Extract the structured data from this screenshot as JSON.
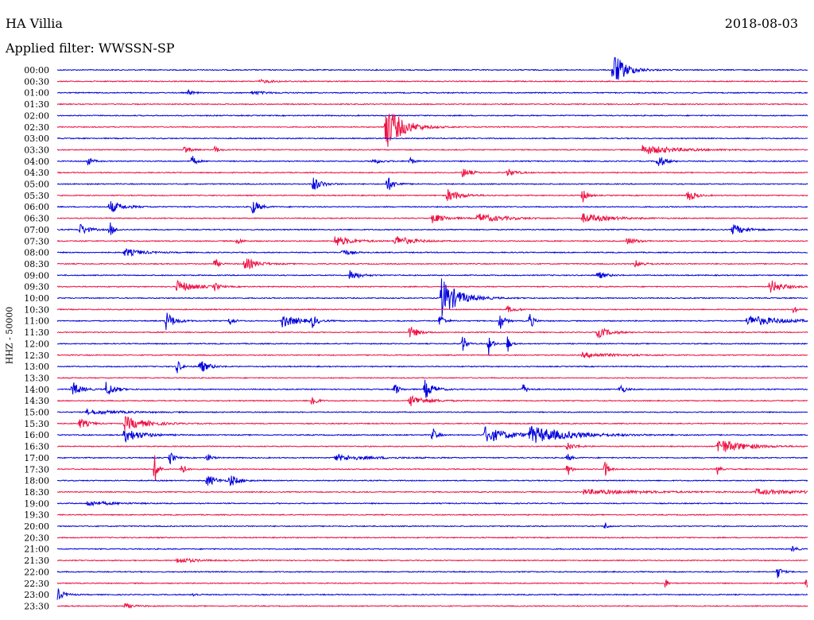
{
  "header": {
    "station": "HA Villia",
    "date": "2018-08-03",
    "filter": "Applied filter: WWSSN-SP"
  },
  "chart_data": {
    "type": "line",
    "title": "HA Villia",
    "subtitle": "Applied filter: WWSSN-SP",
    "ylabel": "HHZ - 50000",
    "colors": [
      "#0000dd",
      "#ee1144"
    ],
    "rows": [
      {
        "label": "00:00",
        "color": "blue",
        "events": [
          {
            "t": 0.741,
            "amp": 22,
            "dur": 0.015
          }
        ]
      },
      {
        "label": "00:30",
        "color": "red",
        "events": [
          {
            "t": 0.27,
            "amp": 2,
            "dur": 0.02
          }
        ]
      },
      {
        "label": "01:00",
        "color": "blue",
        "events": [
          {
            "t": 0.175,
            "amp": 4,
            "dur": 0.005
          },
          {
            "t": 0.26,
            "amp": 2,
            "dur": 0.02
          }
        ]
      },
      {
        "label": "01:30",
        "color": "red",
        "events": []
      },
      {
        "label": "02:00",
        "color": "blue",
        "events": []
      },
      {
        "label": "02:30",
        "color": "red",
        "events": [
          {
            "t": 0.437,
            "amp": 30,
            "dur": 0.02
          }
        ]
      },
      {
        "label": "03:00",
        "color": "blue",
        "events": []
      },
      {
        "label": "03:30",
        "color": "red",
        "events": [
          {
            "t": 0.17,
            "amp": 6,
            "dur": 0.006
          },
          {
            "t": 0.21,
            "amp": 5,
            "dur": 0.005
          },
          {
            "t": 0.78,
            "amp": 6,
            "dur": 0.04
          }
        ]
      },
      {
        "label": "04:00",
        "color": "blue",
        "events": [
          {
            "t": 0.04,
            "amp": 6,
            "dur": 0.006
          },
          {
            "t": 0.18,
            "amp": 7,
            "dur": 0.005
          },
          {
            "t": 0.42,
            "amp": 4,
            "dur": 0.01
          },
          {
            "t": 0.47,
            "amp": 5,
            "dur": 0.005
          },
          {
            "t": 0.8,
            "amp": 10,
            "dur": 0.008
          }
        ]
      },
      {
        "label": "04:30",
        "color": "red",
        "events": [
          {
            "t": 0.54,
            "amp": 6,
            "dur": 0.01
          },
          {
            "t": 0.6,
            "amp": 5,
            "dur": 0.01
          }
        ]
      },
      {
        "label": "05:00",
        "color": "blue",
        "events": [
          {
            "t": 0.34,
            "amp": 10,
            "dur": 0.01
          },
          {
            "t": 0.44,
            "amp": 10,
            "dur": 0.008
          }
        ]
      },
      {
        "label": "05:30",
        "color": "red",
        "events": [
          {
            "t": 0.52,
            "amp": 8,
            "dur": 0.015
          },
          {
            "t": 0.7,
            "amp": 10,
            "dur": 0.005
          },
          {
            "t": 0.84,
            "amp": 9,
            "dur": 0.008
          }
        ]
      },
      {
        "label": "06:00",
        "color": "blue",
        "events": [
          {
            "t": 0.07,
            "amp": 8,
            "dur": 0.015
          },
          {
            "t": 0.26,
            "amp": 10,
            "dur": 0.008
          }
        ]
      },
      {
        "label": "06:30",
        "color": "red",
        "events": [
          {
            "t": 0.5,
            "amp": 6,
            "dur": 0.015
          },
          {
            "t": 0.56,
            "amp": 6,
            "dur": 0.03
          },
          {
            "t": 0.7,
            "amp": 6,
            "dur": 0.03
          }
        ]
      },
      {
        "label": "07:00",
        "color": "blue",
        "events": [
          {
            "t": 0.03,
            "amp": 8,
            "dur": 0.01
          },
          {
            "t": 0.07,
            "amp": 10,
            "dur": 0.005
          },
          {
            "t": 0.9,
            "amp": 7,
            "dur": 0.015
          }
        ]
      },
      {
        "label": "07:30",
        "color": "red",
        "events": [
          {
            "t": 0.24,
            "amp": 5,
            "dur": 0.005
          },
          {
            "t": 0.37,
            "amp": 7,
            "dur": 0.02
          },
          {
            "t": 0.45,
            "amp": 7,
            "dur": 0.02
          },
          {
            "t": 0.76,
            "amp": 5,
            "dur": 0.01
          }
        ]
      },
      {
        "label": "08:00",
        "color": "blue",
        "events": [
          {
            "t": 0.09,
            "amp": 5,
            "dur": 0.02
          },
          {
            "t": 0.38,
            "amp": 4,
            "dur": 0.01
          }
        ]
      },
      {
        "label": "08:30",
        "color": "red",
        "events": [
          {
            "t": 0.21,
            "amp": 7,
            "dur": 0.005
          },
          {
            "t": 0.25,
            "amp": 8,
            "dur": 0.015
          },
          {
            "t": 0.77,
            "amp": 5,
            "dur": 0.01
          }
        ]
      },
      {
        "label": "09:00",
        "color": "blue",
        "events": [
          {
            "t": 0.39,
            "amp": 8,
            "dur": 0.01
          },
          {
            "t": 0.72,
            "amp": 5,
            "dur": 0.01
          }
        ]
      },
      {
        "label": "09:30",
        "color": "red",
        "events": [
          {
            "t": 0.16,
            "amp": 8,
            "dur": 0.02
          },
          {
            "t": 0.21,
            "amp": 5,
            "dur": 0.005
          },
          {
            "t": 0.95,
            "amp": 9,
            "dur": 0.015
          }
        ]
      },
      {
        "label": "10:00",
        "color": "blue",
        "events": [
          {
            "t": 0.512,
            "amp": 26,
            "dur": 0.02
          }
        ]
      },
      {
        "label": "10:30",
        "color": "red",
        "events": [
          {
            "t": 0.6,
            "amp": 4,
            "dur": 0.01
          },
          {
            "t": 0.982,
            "amp": 7,
            "dur": 0.003
          }
        ]
      },
      {
        "label": "11:00",
        "color": "blue",
        "events": [
          {
            "t": 0.145,
            "amp": 12,
            "dur": 0.01
          },
          {
            "t": 0.23,
            "amp": 6,
            "dur": 0.005
          },
          {
            "t": 0.3,
            "amp": 8,
            "dur": 0.02
          },
          {
            "t": 0.34,
            "amp": 8,
            "dur": 0.005
          },
          {
            "t": 0.51,
            "amp": 10,
            "dur": 0.005
          },
          {
            "t": 0.59,
            "amp": 12,
            "dur": 0.005
          },
          {
            "t": 0.63,
            "amp": 12,
            "dur": 0.004
          },
          {
            "t": 0.92,
            "amp": 7,
            "dur": 0.04
          }
        ]
      },
      {
        "label": "11:30",
        "color": "red",
        "events": [
          {
            "t": 0.47,
            "amp": 8,
            "dur": 0.01
          },
          {
            "t": 0.72,
            "amp": 7,
            "dur": 0.015
          }
        ]
      },
      {
        "label": "12:00",
        "color": "blue",
        "events": [
          {
            "t": 0.54,
            "amp": 14,
            "dur": 0.004
          },
          {
            "t": 0.575,
            "amp": 14,
            "dur": 0.004
          },
          {
            "t": 0.6,
            "amp": 12,
            "dur": 0.003
          }
        ]
      },
      {
        "label": "12:30",
        "color": "red",
        "events": [
          {
            "t": 0.7,
            "amp": 3,
            "dur": 0.04
          }
        ]
      },
      {
        "label": "13:00",
        "color": "blue",
        "events": [
          {
            "t": 0.16,
            "amp": 9,
            "dur": 0.005
          },
          {
            "t": 0.19,
            "amp": 9,
            "dur": 0.01
          }
        ]
      },
      {
        "label": "13:30",
        "color": "red",
        "events": []
      },
      {
        "label": "14:00",
        "color": "blue",
        "events": [
          {
            "t": 0.02,
            "amp": 10,
            "dur": 0.01
          },
          {
            "t": 0.065,
            "amp": 10,
            "dur": 0.01
          },
          {
            "t": 0.45,
            "amp": 8,
            "dur": 0.005
          },
          {
            "t": 0.49,
            "amp": 12,
            "dur": 0.01
          },
          {
            "t": 0.62,
            "amp": 8,
            "dur": 0.005
          },
          {
            "t": 0.75,
            "amp": 8,
            "dur": 0.005
          }
        ]
      },
      {
        "label": "14:30",
        "color": "red",
        "events": [
          {
            "t": 0.34,
            "amp": 10,
            "dur": 0.005
          },
          {
            "t": 0.47,
            "amp": 7,
            "dur": 0.02
          }
        ]
      },
      {
        "label": "15:00",
        "color": "blue",
        "events": [
          {
            "t": 0.04,
            "amp": 3,
            "dur": 0.04
          }
        ]
      },
      {
        "label": "15:30",
        "color": "red",
        "events": [
          {
            "t": 0.03,
            "amp": 7,
            "dur": 0.01
          },
          {
            "t": 0.09,
            "amp": 9,
            "dur": 0.025
          }
        ]
      },
      {
        "label": "16:00",
        "color": "blue",
        "events": [
          {
            "t": 0.09,
            "amp": 9,
            "dur": 0.02
          },
          {
            "t": 0.5,
            "amp": 10,
            "dur": 0.005
          },
          {
            "t": 0.57,
            "amp": 10,
            "dur": 0.03
          },
          {
            "t": 0.63,
            "amp": 10,
            "dur": 0.05
          }
        ]
      },
      {
        "label": "16:30",
        "color": "red",
        "events": [
          {
            "t": 0.68,
            "amp": 5,
            "dur": 0.01
          },
          {
            "t": 0.88,
            "amp": 10,
            "dur": 0.03
          }
        ]
      },
      {
        "label": "17:00",
        "color": "blue",
        "events": [
          {
            "t": 0.15,
            "amp": 9,
            "dur": 0.005
          },
          {
            "t": 0.2,
            "amp": 6,
            "dur": 0.005
          },
          {
            "t": 0.37,
            "amp": 4,
            "dur": 0.04
          },
          {
            "t": 0.68,
            "amp": 5,
            "dur": 0.005
          }
        ]
      },
      {
        "label": "17:30",
        "color": "red",
        "events": [
          {
            "t": 0.13,
            "amp": 18,
            "dur": 0.004
          },
          {
            "t": 0.165,
            "amp": 12,
            "dur": 0.004
          },
          {
            "t": 0.68,
            "amp": 10,
            "dur": 0.004
          },
          {
            "t": 0.73,
            "amp": 12,
            "dur": 0.004
          },
          {
            "t": 0.88,
            "amp": 7,
            "dur": 0.003
          }
        ]
      },
      {
        "label": "18:00",
        "color": "blue",
        "events": [
          {
            "t": 0.2,
            "amp": 8,
            "dur": 0.01
          },
          {
            "t": 0.23,
            "amp": 8,
            "dur": 0.01
          }
        ]
      },
      {
        "label": "18:30",
        "color": "red",
        "events": [
          {
            "t": 0.7,
            "amp": 3,
            "dur": 0.08
          },
          {
            "t": 0.93,
            "amp": 3,
            "dur": 0.06
          }
        ]
      },
      {
        "label": "19:00",
        "color": "blue",
        "events": [
          {
            "t": 0.04,
            "amp": 3,
            "dur": 0.03
          }
        ]
      },
      {
        "label": "19:30",
        "color": "red",
        "events": []
      },
      {
        "label": "20:00",
        "color": "blue",
        "events": [
          {
            "t": 0.73,
            "amp": 6,
            "dur": 0.003
          }
        ]
      },
      {
        "label": "20:30",
        "color": "red",
        "events": []
      },
      {
        "label": "21:00",
        "color": "blue",
        "events": [
          {
            "t": 0.98,
            "amp": 4,
            "dur": 0.005
          }
        ]
      },
      {
        "label": "21:30",
        "color": "red",
        "events": [
          {
            "t": 0.16,
            "amp": 4,
            "dur": 0.02
          }
        ]
      },
      {
        "label": "22:00",
        "color": "blue",
        "events": [
          {
            "t": 0.96,
            "amp": 8,
            "dur": 0.005
          }
        ]
      },
      {
        "label": "22:30",
        "color": "red",
        "events": [
          {
            "t": 0.81,
            "amp": 7,
            "dur": 0.003
          },
          {
            "t": 0.998,
            "amp": 10,
            "dur": 0.002
          }
        ]
      },
      {
        "label": "23:00",
        "color": "blue",
        "events": [
          {
            "t": 0.0,
            "amp": 8,
            "dur": 0.008
          },
          {
            "t": 0.18,
            "amp": 3,
            "dur": 0.005
          }
        ]
      },
      {
        "label": "23:30",
        "color": "red",
        "events": [
          {
            "t": 0.09,
            "amp": 3,
            "dur": 0.01
          }
        ]
      }
    ]
  }
}
